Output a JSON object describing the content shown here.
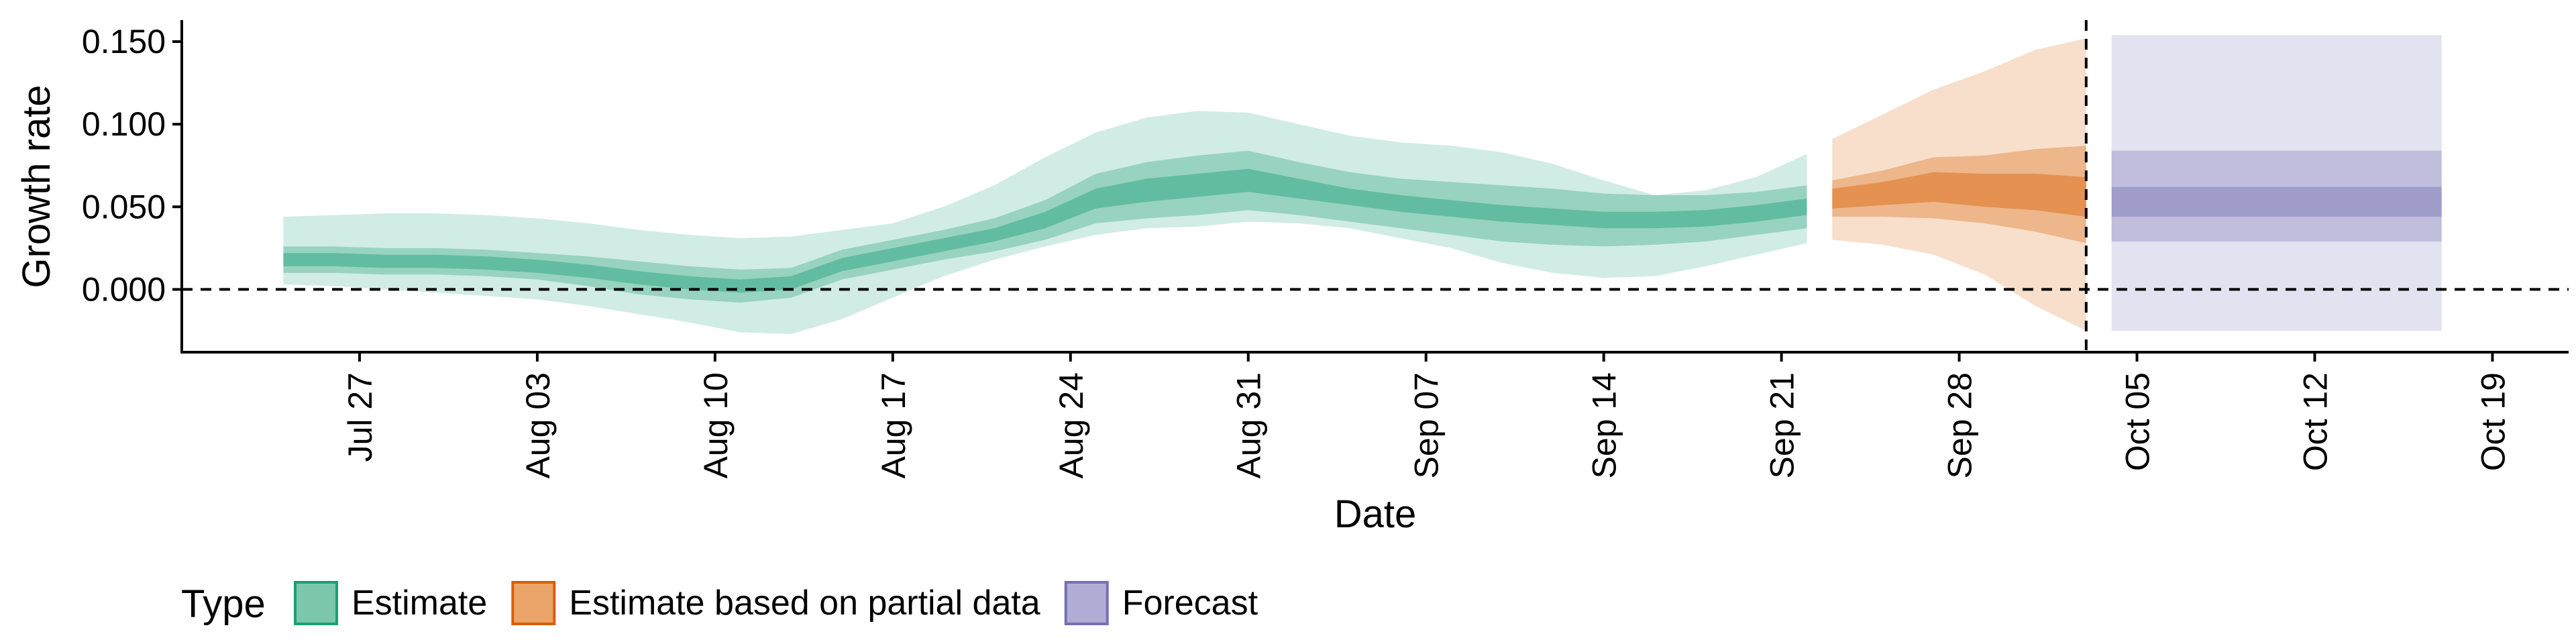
{
  "chart_data": {
    "type": "area",
    "title": "",
    "xlabel": "Date",
    "ylabel": "Growth rate",
    "x_type": "date",
    "xlim": [
      "2020-07-20",
      "2020-10-22"
    ],
    "ylim": [
      -0.038,
      0.163
    ],
    "x_ticks": [
      {
        "date": "2020-07-27",
        "label": "Jul 27"
      },
      {
        "date": "2020-08-03",
        "label": "Aug 03"
      },
      {
        "date": "2020-08-10",
        "label": "Aug 10"
      },
      {
        "date": "2020-08-17",
        "label": "Aug 17"
      },
      {
        "date": "2020-08-24",
        "label": "Aug 24"
      },
      {
        "date": "2020-08-31",
        "label": "Aug 31"
      },
      {
        "date": "2020-09-07",
        "label": "Sep 07"
      },
      {
        "date": "2020-09-14",
        "label": "Sep 14"
      },
      {
        "date": "2020-09-21",
        "label": "Sep 21"
      },
      {
        "date": "2020-09-28",
        "label": "Sep 28"
      },
      {
        "date": "2020-10-05",
        "label": "Oct 05"
      },
      {
        "date": "2020-10-12",
        "label": "Oct 12"
      },
      {
        "date": "2020-10-19",
        "label": "Oct 19"
      }
    ],
    "y_ticks": [
      {
        "value": 0.0,
        "label": "0.000"
      },
      {
        "value": 0.05,
        "label": "0.050"
      },
      {
        "value": 0.1,
        "label": "0.100"
      },
      {
        "value": 0.15,
        "label": "0.150"
      }
    ],
    "reference_lines": {
      "horizontal_y": 0,
      "vertical_date": "2020-10-03"
    },
    "grid": false,
    "legend": {
      "title": "Type",
      "position": "bottom-left",
      "entries": [
        {
          "label": "Estimate",
          "fill": "#7cc7ab",
          "stroke": "#1b9e77"
        },
        {
          "label": "Estimate based on partial data",
          "fill": "#eba46a",
          "stroke": "#d95f02"
        },
        {
          "label": "Forecast",
          "fill": "#b0acd4",
          "stroke": "#7570b3"
        }
      ]
    },
    "series": [
      {
        "type_label": "Estimate",
        "color": "#1b9e77",
        "x": [
          "2020-07-24",
          "2020-07-26",
          "2020-07-28",
          "2020-07-30",
          "2020-08-01",
          "2020-08-03",
          "2020-08-05",
          "2020-08-07",
          "2020-08-09",
          "2020-08-11",
          "2020-08-13",
          "2020-08-15",
          "2020-08-17",
          "2020-08-19",
          "2020-08-21",
          "2020-08-23",
          "2020-08-25",
          "2020-08-27",
          "2020-08-29",
          "2020-08-31",
          "2020-09-02",
          "2020-09-04",
          "2020-09-06",
          "2020-09-08",
          "2020-09-10",
          "2020-09-12",
          "2020-09-14",
          "2020-09-16",
          "2020-09-18",
          "2020-09-20",
          "2020-09-22"
        ],
        "median": [
          0.018,
          0.018,
          0.017,
          0.017,
          0.016,
          0.014,
          0.011,
          0.007,
          0.004,
          0.002,
          0.004,
          0.015,
          0.021,
          0.027,
          0.033,
          0.042,
          0.055,
          0.06,
          0.063,
          0.066,
          0.061,
          0.056,
          0.052,
          0.049,
          0.046,
          0.044,
          0.042,
          0.042,
          0.043,
          0.046,
          0.05
        ],
        "ci20": [
          [
            0.014,
            0.022
          ],
          [
            0.014,
            0.022
          ],
          [
            0.013,
            0.021
          ],
          [
            0.013,
            0.021
          ],
          [
            0.012,
            0.02
          ],
          [
            0.01,
            0.018
          ],
          [
            0.007,
            0.015
          ],
          [
            0.003,
            0.011
          ],
          [
            0.0,
            0.008
          ],
          [
            -0.002,
            0.006
          ],
          [
            0.0,
            0.008
          ],
          [
            0.011,
            0.019
          ],
          [
            0.017,
            0.025
          ],
          [
            0.023,
            0.031
          ],
          [
            0.029,
            0.037
          ],
          [
            0.037,
            0.047
          ],
          [
            0.049,
            0.061
          ],
          [
            0.053,
            0.067
          ],
          [
            0.056,
            0.07
          ],
          [
            0.059,
            0.073
          ],
          [
            0.055,
            0.067
          ],
          [
            0.051,
            0.061
          ],
          [
            0.047,
            0.057
          ],
          [
            0.044,
            0.054
          ],
          [
            0.041,
            0.051
          ],
          [
            0.039,
            0.049
          ],
          [
            0.037,
            0.047
          ],
          [
            0.037,
            0.047
          ],
          [
            0.038,
            0.048
          ],
          [
            0.041,
            0.051
          ],
          [
            0.045,
            0.055
          ]
        ],
        "ci50": [
          [
            0.01,
            0.026
          ],
          [
            0.01,
            0.026
          ],
          [
            0.009,
            0.025
          ],
          [
            0.009,
            0.025
          ],
          [
            0.008,
            0.024
          ],
          [
            0.006,
            0.022
          ],
          [
            0.002,
            0.02
          ],
          [
            -0.003,
            0.017
          ],
          [
            -0.006,
            0.014
          ],
          [
            -0.008,
            0.012
          ],
          [
            -0.005,
            0.013
          ],
          [
            0.006,
            0.024
          ],
          [
            0.012,
            0.03
          ],
          [
            0.018,
            0.036
          ],
          [
            0.023,
            0.043
          ],
          [
            0.03,
            0.054
          ],
          [
            0.04,
            0.07
          ],
          [
            0.043,
            0.077
          ],
          [
            0.045,
            0.081
          ],
          [
            0.048,
            0.084
          ],
          [
            0.045,
            0.077
          ],
          [
            0.041,
            0.071
          ],
          [
            0.037,
            0.067
          ],
          [
            0.033,
            0.065
          ],
          [
            0.029,
            0.063
          ],
          [
            0.027,
            0.061
          ],
          [
            0.026,
            0.058
          ],
          [
            0.027,
            0.057
          ],
          [
            0.029,
            0.057
          ],
          [
            0.033,
            0.059
          ],
          [
            0.037,
            0.063
          ]
        ],
        "ci90": [
          [
            0.003,
            0.044
          ],
          [
            0.002,
            0.045
          ],
          [
            0.0,
            0.046
          ],
          [
            -0.002,
            0.046
          ],
          [
            -0.004,
            0.045
          ],
          [
            -0.006,
            0.043
          ],
          [
            -0.01,
            0.04
          ],
          [
            -0.015,
            0.036
          ],
          [
            -0.02,
            0.033
          ],
          [
            -0.026,
            0.031
          ],
          [
            -0.027,
            0.032
          ],
          [
            -0.018,
            0.036
          ],
          [
            -0.005,
            0.04
          ],
          [
            0.008,
            0.05
          ],
          [
            0.018,
            0.063
          ],
          [
            0.026,
            0.08
          ],
          [
            0.033,
            0.095
          ],
          [
            0.037,
            0.104
          ],
          [
            0.038,
            0.108
          ],
          [
            0.041,
            0.107
          ],
          [
            0.04,
            0.1
          ],
          [
            0.037,
            0.093
          ],
          [
            0.031,
            0.089
          ],
          [
            0.025,
            0.087
          ],
          [
            0.016,
            0.083
          ],
          [
            0.01,
            0.076
          ],
          [
            0.007,
            0.066
          ],
          [
            0.008,
            0.057
          ],
          [
            0.014,
            0.06
          ],
          [
            0.021,
            0.068
          ],
          [
            0.028,
            0.082
          ]
        ]
      },
      {
        "type_label": "Estimate based on partial data",
        "color": "#d95f02",
        "x": [
          "2020-09-23",
          "2020-09-25",
          "2020-09-27",
          "2020-09-29",
          "2020-10-01",
          "2020-10-03"
        ],
        "median": [
          0.055,
          0.058,
          0.062,
          0.06,
          0.058,
          0.055
        ],
        "ci20": [
          [
            0.049,
            0.061
          ],
          [
            0.051,
            0.065
          ],
          [
            0.053,
            0.071
          ],
          [
            0.05,
            0.07
          ],
          [
            0.048,
            0.07
          ],
          [
            0.044,
            0.068
          ]
        ],
        "ci50": [
          [
            0.044,
            0.066
          ],
          [
            0.044,
            0.072
          ],
          [
            0.043,
            0.08
          ],
          [
            0.04,
            0.081
          ],
          [
            0.035,
            0.085
          ],
          [
            0.028,
            0.087
          ]
        ],
        "ci90": [
          [
            0.03,
            0.091
          ],
          [
            0.027,
            0.106
          ],
          [
            0.021,
            0.121
          ],
          [
            0.009,
            0.132
          ],
          [
            -0.01,
            0.145
          ],
          [
            -0.025,
            0.152
          ]
        ]
      },
      {
        "type_label": "Forecast",
        "color": "#7570b3",
        "x": [
          "2020-10-04",
          "2020-10-17"
        ],
        "median": [
          0.053,
          0.053
        ],
        "ci20": [
          [
            0.044,
            0.062
          ],
          [
            0.044,
            0.062
          ]
        ],
        "ci50": [
          [
            0.029,
            0.084
          ],
          [
            0.029,
            0.084
          ]
        ],
        "ci90": [
          [
            -0.025,
            0.154
          ],
          [
            -0.025,
            0.154
          ]
        ]
      }
    ]
  }
}
